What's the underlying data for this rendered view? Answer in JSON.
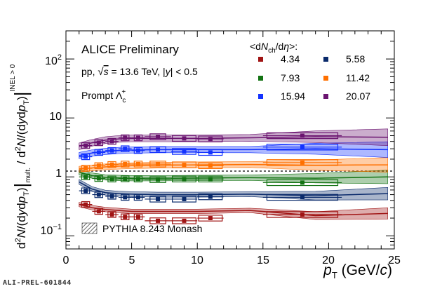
{
  "colors": {
    "4.34": "#a01414",
    "5.58": "#0a2a6b",
    "7.93": "#137313",
    "11.42": "#ff7000",
    "15.94": "#1433ff",
    "20.07": "#6b1470",
    "pythia_hatch": "#222222"
  },
  "figure": {
    "experiment_label": "ALICE Preliminary",
    "system_label": "pp, √s = 13.6 TeV, |y| < 0.5",
    "particle_label": "Prompt Λc+",
    "legend_title": "<dNch/dη>:",
    "pythia_label": "PYTHIA 8.243 Monash",
    "footer_id": "ALI-PREL-601844"
  },
  "chart_data": {
    "type": "scatter",
    "title": "",
    "xlabel": "pT (GeV/c)",
    "ylabel": "d2N/(dydpT)|mult. / d2N/(dydpT)|INEL>0",
    "xlim": [
      0,
      25
    ],
    "ylim": [
      0.06,
      300
    ],
    "y_scale": "log",
    "x_ticks": [
      "0",
      "5",
      "10",
      "15",
      "20",
      "25"
    ],
    "y_ticks": [
      "10-1",
      "1",
      "10",
      "102"
    ],
    "legend_position": "top-right",
    "data_x": [
      1.5,
      2.5,
      3.5,
      4.5,
      5.5,
      7.0,
      9.0,
      11.0,
      18.0
    ],
    "data_x_err": [
      0.5,
      0.5,
      0.5,
      0.5,
      0.5,
      1.0,
      1.0,
      1.0,
      3.0
    ],
    "series": [
      {
        "name": "4.34",
        "data_y": [
          0.34,
          0.26,
          0.23,
          0.21,
          0.21,
          0.18,
          0.18,
          0.2,
          0.23
        ],
        "model_y": [
          0.34,
          0.3,
          0.28,
          0.27,
          0.26,
          0.26,
          0.26,
          0.27,
          0.22,
          0.24
        ]
      },
      {
        "name": "5.58",
        "data_y": [
          0.58,
          0.5,
          0.47,
          0.45,
          0.45,
          0.42,
          0.42,
          0.46,
          0.45
        ],
        "model_y": [
          0.82,
          0.62,
          0.54,
          0.52,
          0.51,
          0.5,
          0.5,
          0.51,
          0.48,
          0.52
        ]
      },
      {
        "name": "7.93",
        "data_y": [
          1.0,
          0.94,
          0.92,
          0.93,
          0.92,
          0.9,
          0.92,
          0.92,
          0.8
        ],
        "model_y": [
          1.2,
          1.05,
          0.98,
          0.96,
          0.95,
          0.95,
          0.96,
          0.97,
          0.95,
          1.0
        ]
      },
      {
        "name": "11.42",
        "data_y": [
          1.4,
          1.55,
          1.62,
          1.65,
          1.65,
          1.65,
          1.6,
          1.55,
          1.75
        ],
        "model_y": [
          1.35,
          1.42,
          1.48,
          1.52,
          1.55,
          1.58,
          1.6,
          1.62,
          1.58,
          1.6
        ]
      },
      {
        "name": "15.94",
        "data_y": [
          2.2,
          2.6,
          2.8,
          3.0,
          2.8,
          2.9,
          2.7,
          2.6,
          3.2
        ],
        "model_y": [
          2.3,
          2.55,
          2.7,
          2.8,
          2.85,
          2.9,
          2.9,
          2.9,
          3.0,
          2.9
        ]
      },
      {
        "name": "20.07",
        "data_y": [
          3.4,
          3.8,
          4.0,
          4.6,
          4.6,
          4.8,
          4.5,
          4.4,
          5.0
        ],
        "model_y": [
          3.3,
          3.8,
          4.2,
          4.4,
          4.5,
          4.5,
          4.5,
          4.6,
          4.8,
          4.7
        ]
      }
    ],
    "model_x": [
      1.0,
      2.0,
      3.0,
      4.0,
      5.0,
      7.0,
      10.0,
      14.0,
      19.0,
      24.5
    ]
  }
}
